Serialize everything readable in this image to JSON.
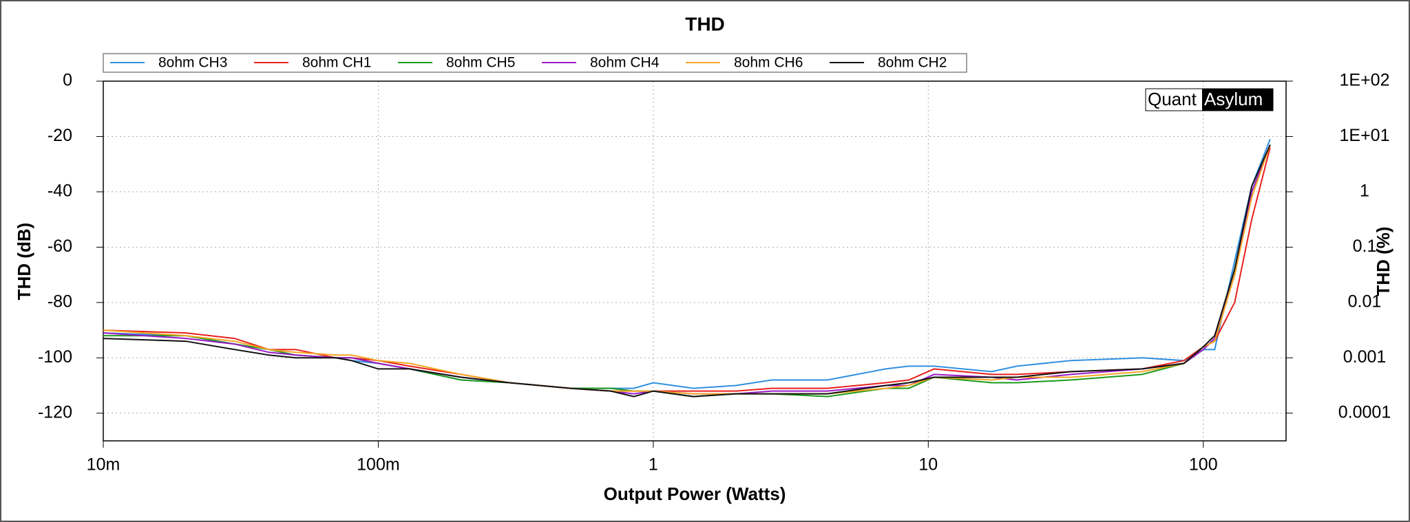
{
  "chart_data": {
    "type": "line",
    "title": "THD",
    "xlabel": "Output Power (Watts)",
    "ylabel": "THD (dB)",
    "y2label": "THD (%)",
    "logo": [
      "Quant",
      "Asylum"
    ],
    "xscale": "log",
    "y2scale": "log",
    "grid": true,
    "xlim": [
      0.01,
      200
    ],
    "ylim": [
      -130,
      0
    ],
    "y2lim": [
      3.16e-05,
      100
    ],
    "xticks": [
      {
        "value": 0.01,
        "label": "10m"
      },
      {
        "value": 0.1,
        "label": "100m"
      },
      1,
      10,
      100
    ],
    "yticks": [
      0,
      -20,
      -40,
      -60,
      -80,
      -100,
      -120
    ],
    "y2ticks": [
      {
        "value": 100,
        "label": "1E+02"
      },
      {
        "value": 10,
        "label": "1E+01"
      },
      1,
      0.1,
      0.01,
      0.001,
      0.0001
    ],
    "x": [
      0.01,
      0.02,
      0.03,
      0.04,
      0.05,
      0.07,
      0.08,
      0.1,
      0.13,
      0.2,
      0.3,
      0.5,
      0.7,
      0.85,
      1,
      1.4,
      2,
      2.7,
      4.3,
      7,
      8.5,
      10.5,
      17,
      21,
      33,
      60,
      85,
      100,
      110,
      130,
      150,
      175
    ],
    "series": [
      {
        "name": "8ohm CH3",
        "color": "#2f8fe0",
        "values": [
          -91,
          -92,
          -95,
          -97,
          -99,
          -100,
          -101,
          -102,
          -104,
          -108,
          -109,
          -111,
          -111,
          -111,
          -109,
          -111,
          -110,
          -108,
          -108,
          -104,
          -103,
          -103,
          -105,
          -103,
          -101,
          -100,
          -101,
          -97,
          -97,
          -65,
          -38,
          -21
        ]
      },
      {
        "name": "8ohm CH1",
        "color": "#e8201c",
        "values": [
          -90,
          -91,
          -93,
          -97,
          -97,
          -100,
          -100,
          -101,
          -103,
          -106,
          -109,
          -111,
          -112,
          -112,
          -112,
          -112,
          -112,
          -111,
          -111,
          -109,
          -108,
          -104,
          -106,
          -106,
          -105,
          -104,
          -101,
          -96,
          -94,
          -80,
          -50,
          -24
        ]
      },
      {
        "name": "8ohm CH5",
        "color": "#1a9a1a",
        "values": [
          -92,
          -92,
          -95,
          -97,
          -99,
          -100,
          -100,
          -102,
          -104,
          -108,
          -109,
          -111,
          -111,
          -112,
          -112,
          -114,
          -113,
          -113,
          -114,
          -111,
          -111,
          -107,
          -109,
          -109,
          -108,
          -106,
          -102,
          -97,
          -93,
          -70,
          -40,
          -23
        ]
      },
      {
        "name": "8ohm CH4",
        "color": "#9a1ac8",
        "values": [
          -91,
          -93,
          -95,
          -98,
          -99,
          -100,
          -100,
          -102,
          -104,
          -107,
          -109,
          -111,
          -112,
          -113,
          -112,
          -113,
          -113,
          -112,
          -112,
          -110,
          -110,
          -106,
          -107,
          -108,
          -106,
          -104,
          -102,
          -97,
          -93,
          -70,
          -40,
          -23
        ]
      },
      {
        "name": "8ohm CH6",
        "color": "#f5a623",
        "values": [
          -90,
          -92,
          -94,
          -97,
          -98,
          -99,
          -99,
          -101,
          -102,
          -106,
          -109,
          -111,
          -112,
          -112,
          -112,
          -113,
          -113,
          -113,
          -113,
          -111,
          -110,
          -107,
          -108,
          -107,
          -107,
          -105,
          -102,
          -96,
          -94,
          -70,
          -42,
          -23
        ]
      },
      {
        "name": "8ohm CH2",
        "color": "#111111",
        "values": [
          -93,
          -94,
          -97,
          -99,
          -100,
          -100,
          -101,
          -104,
          -104,
          -107,
          -109,
          -111,
          -112,
          -114,
          -112,
          -114,
          -113,
          -113,
          -113,
          -110,
          -109,
          -107,
          -107,
          -107,
          -105,
          -104,
          -102,
          -96,
          -92,
          -68,
          -38,
          -23
        ]
      }
    ]
  }
}
